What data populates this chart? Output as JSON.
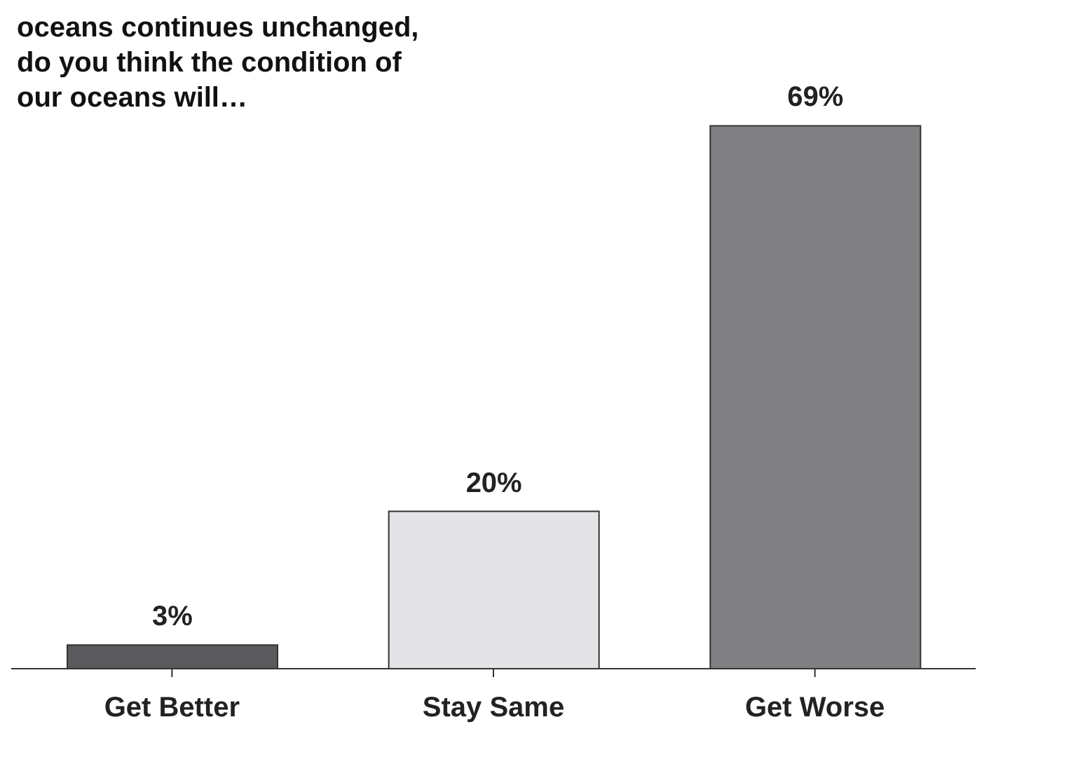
{
  "chart_data": {
    "type": "bar",
    "title": "oceans continues unchanged, do you think the condition of our oceans will…",
    "categories": [
      "Get Better",
      "Stay Same",
      "Get Worse"
    ],
    "values": [
      3,
      20,
      69
    ],
    "colors": [
      "#5a5a5c",
      "#e4e4e6",
      "#808082"
    ],
    "value_labels": [
      "3%",
      "20%",
      "69%"
    ],
    "grid": false,
    "legend": false
  }
}
